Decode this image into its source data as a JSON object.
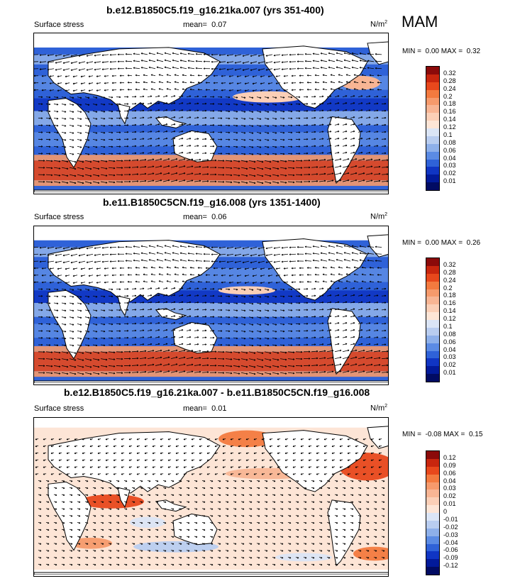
{
  "season": "MAM",
  "panels": [
    {
      "title": "b.e12.B1850C5.f19_g16.21ka.007 (yrs 351-400)",
      "variable": "Surface stress",
      "mean_label": "mean=",
      "mean_value": "0.07",
      "units_base": "N/m",
      "units_exp": "2",
      "min_label": "MIN =",
      "min_value": "0.00",
      "max_label": "MAX =",
      "max_value": "0.32",
      "colorbar_labels": [
        "0.32",
        "0.28",
        "0.24",
        "0.2",
        "0.18",
        "0.16",
        "0.14",
        "0.12",
        "0.1",
        "0.08",
        "0.06",
        "0.04",
        "0.03",
        "0.02",
        "0.01"
      ],
      "colorbar_colors": [
        "#8b0a0a",
        "#c8260e",
        "#e8481c",
        "#f37a3f",
        "#f69a6c",
        "#f8b594",
        "#fbcfb7",
        "#fde5d6",
        "#dbe5f6",
        "#b9cdf0",
        "#8eb0ea",
        "#5b8be4",
        "#2f62d8",
        "#1035c3",
        "#021a9a",
        "#010b63"
      ]
    },
    {
      "title": "b.e11.B1850C5CN.f19_g16.008 (yrs 1351-1400)",
      "variable": "Surface stress",
      "mean_label": "mean=",
      "mean_value": "0.06",
      "units_base": "N/m",
      "units_exp": "2",
      "min_label": "MIN =",
      "min_value": "0.00",
      "max_label": "MAX =",
      "max_value": "0.26",
      "colorbar_labels": [
        "0.32",
        "0.28",
        "0.24",
        "0.2",
        "0.18",
        "0.16",
        "0.14",
        "0.12",
        "0.1",
        "0.08",
        "0.06",
        "0.04",
        "0.03",
        "0.02",
        "0.01"
      ],
      "colorbar_colors": [
        "#8b0a0a",
        "#c8260e",
        "#e8481c",
        "#f37a3f",
        "#f69a6c",
        "#f8b594",
        "#fbcfb7",
        "#fde5d6",
        "#dbe5f6",
        "#b9cdf0",
        "#8eb0ea",
        "#5b8be4",
        "#2f62d8",
        "#1035c3",
        "#021a9a",
        "#010b63"
      ]
    },
    {
      "title": "b.e12.B1850C5.f19_g16.21ka.007 - b.e11.B1850C5CN.f19_g16.008",
      "variable": "Surface stress",
      "mean_label": "mean=",
      "mean_value": "0.01",
      "units_base": "N/m",
      "units_exp": "2",
      "min_label": "MIN =",
      "min_value": "-0.08",
      "max_label": "MAX =",
      "max_value": "0.15",
      "colorbar_labels": [
        "0.12",
        "0.09",
        "0.06",
        "0.04",
        "0.03",
        "0.02",
        "0.01",
        "0",
        "-0.01",
        "-0.02",
        "-0.03",
        "-0.04",
        "-0.06",
        "-0.09",
        "-0.12"
      ],
      "colorbar_colors": [
        "#8b0a0a",
        "#c8260e",
        "#e8481c",
        "#f37a3f",
        "#f69a6c",
        "#f8b594",
        "#fbcfb7",
        "#fde5d6",
        "#dbe5f6",
        "#b9cdf0",
        "#8eb0ea",
        "#5b8be4",
        "#2f62d8",
        "#1035c3",
        "#021a9a",
        "#010b63"
      ]
    }
  ]
}
